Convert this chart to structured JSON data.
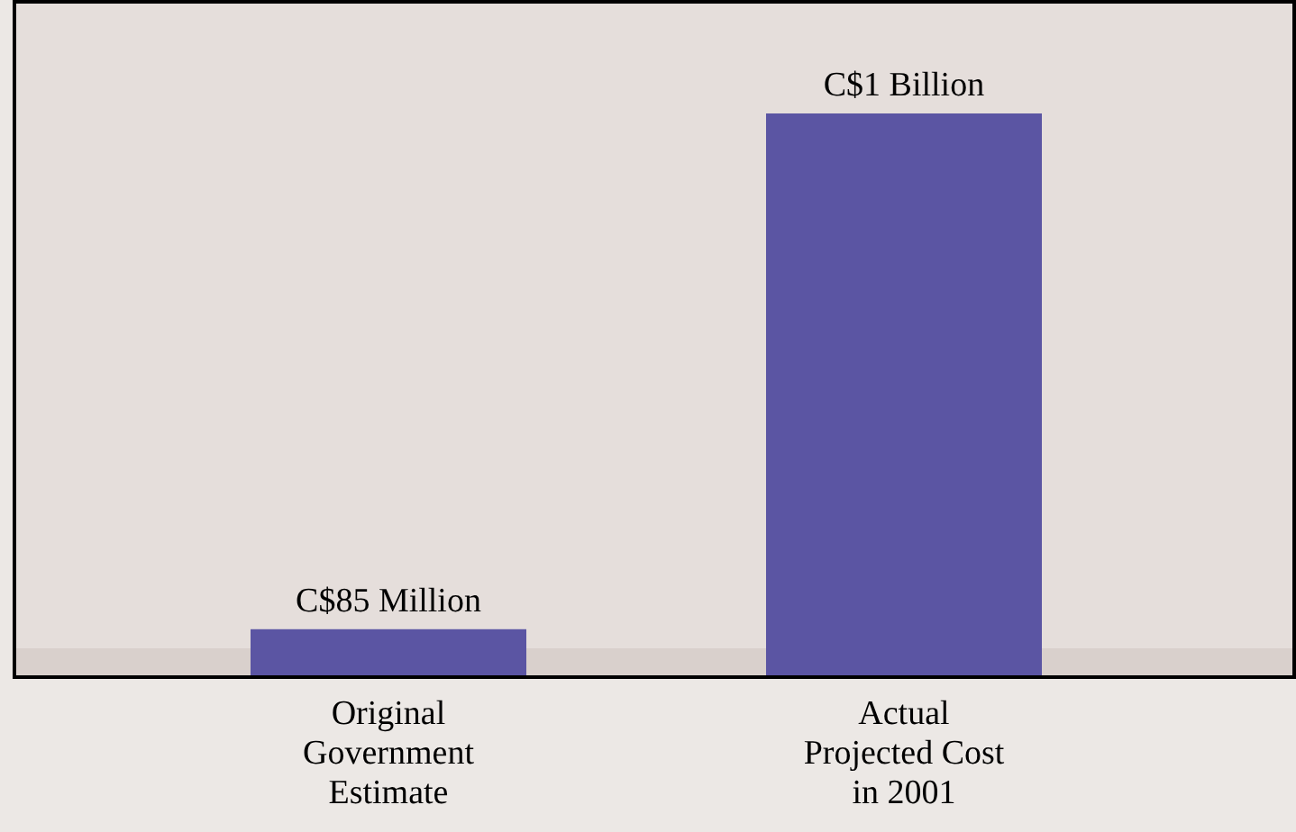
{
  "chart_data": {
    "type": "bar",
    "categories": [
      "Original\nGovernment\nEstimate",
      "Actual\nProjected Cost\nin 2001"
    ],
    "values": [
      85,
      1000
    ],
    "value_labels": [
      "C$85 Million",
      "C$1 Billion"
    ],
    "color": "#5b55a3"
  }
}
